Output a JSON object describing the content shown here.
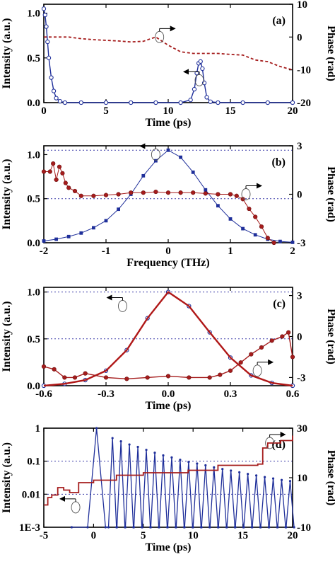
{
  "colors": {
    "intensity": "#1f2f9a",
    "phase": "#a51c1c",
    "ref": "#3a3aa8",
    "fit": "#b01818"
  },
  "chart_data": [
    {
      "type": "line",
      "panel": "(a)",
      "xlabel": "Time (ps)",
      "ylabel_left": "Intensity (a.u.)",
      "ylabel_right": "Phase (rad)",
      "xlim": [
        0,
        20
      ],
      "ylim_left": [
        0,
        1.1
      ],
      "ylim_right": [
        -20,
        10
      ],
      "xticks": [
        "0",
        "5",
        "10",
        "15",
        "20"
      ],
      "xtick_values": [
        0,
        5,
        10,
        15,
        20
      ],
      "yticks_left": [
        "0.0",
        "0.5",
        "1.0"
      ],
      "ytick_values_left": [
        0,
        0.5,
        1.0
      ],
      "yticks_right": [
        "10",
        "0",
        "-10",
        "-20"
      ],
      "ytick_values_right": [
        10,
        0,
        -10,
        -20
      ],
      "series": [
        {
          "axis": "left",
          "style": "line-markers",
          "color": "#1f2f9a",
          "x": [
            0.0,
            0.1,
            0.2,
            0.3,
            0.4,
            0.6,
            0.8,
            1.0,
            1.3,
            1.7,
            3,
            5,
            7,
            9,
            11,
            11.8,
            12.1,
            12.3,
            12.45,
            12.6,
            12.75,
            12.9,
            13.1,
            13.4,
            14,
            16,
            18,
            20
          ],
          "y": [
            1.05,
            0.98,
            0.85,
            0.68,
            0.5,
            0.28,
            0.13,
            0.05,
            0.015,
            0.0,
            0.0,
            0.0,
            0.0,
            0.0,
            0.0,
            0.03,
            0.15,
            0.33,
            0.44,
            0.46,
            0.38,
            0.22,
            0.06,
            0.01,
            0.0,
            0.0,
            0.0,
            0.0
          ]
        },
        {
          "axis": "right",
          "style": "dashed",
          "color": "#a51c1c",
          "x": [
            0,
            1,
            2,
            3,
            4,
            5,
            6,
            7,
            8,
            9,
            10,
            11,
            12,
            13,
            14,
            15,
            16,
            17,
            18,
            19,
            20
          ],
          "y": [
            0,
            0,
            0,
            -0.5,
            -0.8,
            -1,
            -1.2,
            -1.5,
            -1.3,
            0,
            -2.5,
            -4.5,
            -5,
            -5,
            -5,
            -5.3,
            -5.5,
            -7,
            -7.5,
            -9,
            -10
          ]
        }
      ],
      "arrows": [
        {
          "points_to": "right",
          "at_x": 9.3,
          "at_y_right": 0
        },
        {
          "points_to": "left",
          "at_x": 12.5,
          "at_y_left": 0.25
        }
      ]
    },
    {
      "type": "scatter",
      "panel": "(b)",
      "xlabel": "Frequency (THz)",
      "ylabel_left": "Intensity (a.u.)",
      "ylabel_right": "Phase (rad)",
      "xlim": [
        -2,
        2
      ],
      "ylim_left": [
        0,
        1.1
      ],
      "ylim_right": [
        -3,
        3
      ],
      "xticks": [
        "-2",
        "-1",
        "0",
        "1",
        "2"
      ],
      "xtick_values": [
        -2,
        -1,
        0,
        1,
        2
      ],
      "yticks_left": [
        "0.0",
        "0.5",
        "1.0"
      ],
      "ytick_values_left": [
        0,
        0.5,
        1.0
      ],
      "yticks_right": [
        "3",
        "0",
        "-3"
      ],
      "ytick_values_right": [
        3,
        0,
        -3
      ],
      "ref_lines": [
        {
          "axis": "left",
          "y": 1.05
        },
        {
          "axis": "left",
          "y": 0.5
        }
      ],
      "series": [
        {
          "axis": "left",
          "style": "square-markers",
          "color": "#1f2f9a",
          "x": [
            -2.0,
            -1.8,
            -1.6,
            -1.4,
            -1.2,
            -1.0,
            -0.8,
            -0.6,
            -0.4,
            -0.2,
            0.0,
            0.2,
            0.4,
            0.6,
            0.8,
            1.0,
            1.2,
            1.4,
            1.6,
            1.8,
            2.0
          ],
          "y": [
            0.02,
            0.04,
            0.07,
            0.11,
            0.17,
            0.25,
            0.38,
            0.55,
            0.76,
            0.93,
            1.05,
            0.97,
            0.8,
            0.6,
            0.42,
            0.27,
            0.16,
            0.09,
            0.04,
            0.015,
            0.005
          ]
        },
        {
          "axis": "right",
          "style": "circle-markers",
          "color": "#a51c1c",
          "x": [
            -2.0,
            -1.9,
            -1.85,
            -1.8,
            -1.75,
            -1.7,
            -1.65,
            -1.6,
            -1.5,
            -1.4,
            -1.2,
            -1.0,
            -0.8,
            -0.6,
            -0.4,
            -0.2,
            0.0,
            0.2,
            0.4,
            0.6,
            0.8,
            1.0,
            1.1,
            1.2,
            1.3,
            1.4,
            1.5,
            1.6,
            1.7
          ],
          "y": [
            1.4,
            1.4,
            1.9,
            0.9,
            1.7,
            1.3,
            0.7,
            0.4,
            0.2,
            -0.1,
            -0.1,
            -0.05,
            0.0,
            0.1,
            0.1,
            0.15,
            0.1,
            0.1,
            0.1,
            0.05,
            0.0,
            0.0,
            -0.1,
            -0.3,
            -0.9,
            -1.4,
            -2.0,
            -2.7,
            -3.0
          ]
        }
      ],
      "arrows": [
        {
          "points_to": "left",
          "at_x": -0.2,
          "at_y_left": 1.0
        },
        {
          "points_to": "right",
          "at_x": 1.25,
          "at_y_right": 0
        }
      ]
    },
    {
      "type": "line",
      "panel": "(c)",
      "xlabel": "Time (ps)",
      "ylabel_left": "Intensity (a.u.)",
      "ylabel_right": "Phase (rad)",
      "xlim": [
        -0.6,
        0.6
      ],
      "ylim_left": [
        0,
        1.05
      ],
      "ylim_right": [
        -3.6,
        3.6
      ],
      "xticks": [
        "-0.6",
        "-0.3",
        "0.0",
        "0.3",
        "0.6"
      ],
      "xtick_values": [
        -0.6,
        -0.3,
        0.0,
        0.3,
        0.6
      ],
      "yticks_left": [
        "0.0",
        "0.5",
        "1.0"
      ],
      "ytick_values_left": [
        0,
        0.5,
        1.0
      ],
      "yticks_right": [
        "3",
        "0",
        "-3"
      ],
      "ytick_values_right": [
        3,
        0,
        -3
      ],
      "ref_lines": [
        {
          "axis": "left",
          "y": 1.0
        },
        {
          "axis": "left",
          "y": 0.5
        }
      ],
      "series": [
        {
          "axis": "left",
          "style": "open-circles",
          "color": "#1f2f9a",
          "x": [
            -0.6,
            -0.5,
            -0.4,
            -0.3,
            -0.2,
            -0.1,
            0.0,
            0.1,
            0.2,
            0.3,
            0.4,
            0.5,
            0.6
          ],
          "y": [
            0.0,
            0.02,
            0.06,
            0.16,
            0.38,
            0.72,
            1.0,
            0.85,
            0.57,
            0.3,
            0.11,
            0.03,
            0.0
          ]
        },
        {
          "axis": "left",
          "style": "solid-fit",
          "color": "#b01818",
          "x": [
            -0.6,
            -0.5,
            -0.4,
            -0.3,
            -0.2,
            -0.1,
            0.0,
            0.1,
            0.2,
            0.3,
            0.4,
            0.5,
            0.6
          ],
          "y": [
            0.0,
            0.02,
            0.06,
            0.16,
            0.38,
            0.72,
            1.0,
            0.85,
            0.57,
            0.3,
            0.11,
            0.03,
            0.0
          ]
        },
        {
          "axis": "right",
          "style": "line-circle-markers",
          "color": "#a51c1c",
          "x": [
            -0.6,
            -0.55,
            -0.5,
            -0.45,
            -0.4,
            -0.3,
            -0.2,
            -0.1,
            0.0,
            0.1,
            0.2,
            0.25,
            0.3,
            0.35,
            0.4,
            0.45,
            0.5,
            0.55,
            0.58,
            0.6
          ],
          "y": [
            -2.2,
            -2.4,
            -3.0,
            -3.0,
            -2.7,
            -3.0,
            -3.1,
            -3.0,
            -2.9,
            -3.0,
            -3.0,
            -2.8,
            -2.5,
            -1.9,
            -1.3,
            -0.8,
            -0.3,
            0.0,
            0.3,
            -1.5
          ]
        }
      ],
      "arrows": [
        {
          "points_to": "left",
          "at_x": -0.22,
          "at_y_left": 0.85
        },
        {
          "points_to": "right",
          "at_x": 0.43,
          "at_y_right": -2.5
        }
      ]
    },
    {
      "type": "line",
      "panel": "(d)",
      "xlabel": "Time (ps)",
      "ylabel_left": "Intensity (a.u.)",
      "ylabel_right": "Phase (rad)",
      "xlim": [
        -5,
        20
      ],
      "ylim_left": [
        0.001,
        1
      ],
      "yscale_left": "log",
      "ylim_right": [
        -10,
        30
      ],
      "xticks": [
        "-5",
        "0",
        "5",
        "10",
        "15",
        "20"
      ],
      "xtick_values": [
        -5,
        0,
        5,
        10,
        15,
        20
      ],
      "yticks_left": [
        "1",
        "0.1",
        "0.01",
        "1E-3"
      ],
      "ytick_values_left": [
        1,
        0.1,
        0.01,
        0.001
      ],
      "yticks_right": [
        "30",
        "10",
        "-10"
      ],
      "ytick_values_right": [
        30,
        10,
        -10
      ],
      "ref_lines": [
        {
          "axis": "left",
          "y": 0.1
        },
        {
          "axis": "left",
          "y": 0.01
        }
      ],
      "series": [
        {
          "axis": "left",
          "style": "fringes-markers",
          "color": "#1f2f9a",
          "fringe_peaks_x": [
            0.3,
            1.9,
            2.75,
            3.6,
            4.45,
            5.3,
            6.15,
            7.0,
            7.85,
            8.7,
            9.55,
            10.4,
            11.25,
            12.1,
            12.95,
            13.8,
            14.65,
            15.5,
            16.35,
            17.2,
            18.05,
            18.9,
            19.75
          ],
          "fringe_peaks_y": [
            1.0,
            0.5,
            0.4,
            0.32,
            0.27,
            0.22,
            0.18,
            0.15,
            0.13,
            0.11,
            0.095,
            0.085,
            0.075,
            0.065,
            0.058,
            0.052,
            0.046,
            0.041,
            0.037,
            0.033,
            0.03,
            0.027,
            0.025
          ],
          "fringe_minima_y": 0.001
        },
        {
          "axis": "right",
          "style": "step-line",
          "color": "#a51c1c",
          "x": [
            -5,
            -4.6,
            -4.2,
            -3.6,
            -3.0,
            -2.4,
            -1.5,
            0.0,
            2.3,
            5.0,
            9.5,
            12.5,
            16.5,
            17.0,
            17.5,
            18.8,
            20
          ],
          "y": [
            -1,
            2,
            3,
            6,
            5,
            4,
            8,
            9,
            11,
            12,
            13,
            15,
            15.5,
            22,
            24,
            25,
            27
          ]
        }
      ],
      "arrows": [
        {
          "points_to": "left",
          "at_x": -1.8,
          "at_y_left": 0.004
        },
        {
          "points_to": "right",
          "at_x": 17.7,
          "at_y_right": 24
        }
      ]
    }
  ]
}
